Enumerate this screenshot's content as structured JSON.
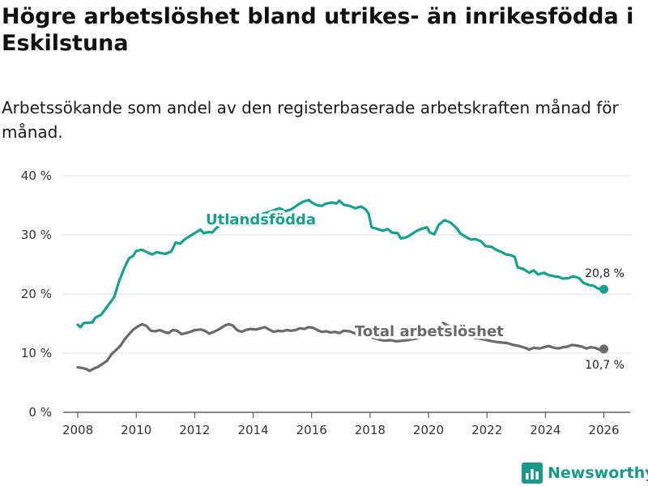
{
  "colors": {
    "foreign_born": "#17a08f",
    "total": "#6a6a6a",
    "grid": "#dcdcdc",
    "brand": "#17988a"
  },
  "icons": {
    "brand_logo": "newsworthy-bar-chart-icon"
  },
  "brand": {
    "name": "Newsworthy"
  },
  "chart_data": {
    "type": "line",
    "title": "Högre arbetslöshet bland utrikes- än inrikesfödda i Eskilstuna",
    "subtitle": "Arbetssökande som andel av den registerbaserade arbetskraften månad för månad.",
    "xlabel": "",
    "ylabel": "",
    "xlim": [
      2007.5,
      2026.9
    ],
    "ylim": [
      0,
      40
    ],
    "x_ticks": [
      2008,
      2010,
      2012,
      2014,
      2016,
      2018,
      2020,
      2022,
      2024,
      2026
    ],
    "x_tick_labels": [
      "2008",
      "2010",
      "2012",
      "2014",
      "2016",
      "2018",
      "2020",
      "2022",
      "2024",
      "2026"
    ],
    "y_ticks": [
      0,
      10,
      20,
      30,
      40
    ],
    "y_tick_labels": [
      "0 %",
      "10 %",
      "20 %",
      "30 %",
      "40 %"
    ],
    "series": [
      {
        "name": "Utlandsfödda",
        "label": "Utlandsfödda",
        "end_label": "20,8 %",
        "points": [
          [
            2008.0,
            14.8
          ],
          [
            2008.1,
            14.4
          ],
          [
            2008.2,
            15.1
          ],
          [
            2008.5,
            15.2
          ],
          [
            2008.6,
            16.0
          ],
          [
            2008.8,
            16.5
          ],
          [
            2008.95,
            17.5
          ],
          [
            2009.1,
            18.5
          ],
          [
            2009.25,
            19.5
          ],
          [
            2009.4,
            22.0
          ],
          [
            2009.6,
            24.5
          ],
          [
            2009.75,
            26.0
          ],
          [
            2009.9,
            26.5
          ],
          [
            2010.0,
            27.3
          ],
          [
            2010.2,
            27.5
          ],
          [
            2010.4,
            27.0
          ],
          [
            2010.55,
            26.7
          ],
          [
            2010.7,
            27.1
          ],
          [
            2010.85,
            26.9
          ],
          [
            2011.0,
            26.8
          ],
          [
            2011.2,
            27.2
          ],
          [
            2011.35,
            28.7
          ],
          [
            2011.5,
            28.5
          ],
          [
            2011.65,
            29.2
          ],
          [
            2011.8,
            29.7
          ],
          [
            2012.0,
            30.3
          ],
          [
            2012.2,
            30.9
          ],
          [
            2012.3,
            30.3
          ],
          [
            2012.5,
            30.5
          ],
          [
            2012.6,
            30.4
          ],
          [
            2012.75,
            31.2
          ],
          [
            2013.0,
            32.0
          ],
          [
            2013.5,
            32.8
          ],
          [
            2014.0,
            33.2
          ],
          [
            2014.5,
            33.8
          ],
          [
            2014.9,
            34.5
          ],
          [
            2015.1,
            34.0
          ],
          [
            2015.3,
            34.3
          ],
          [
            2015.5,
            35.0
          ],
          [
            2015.7,
            35.6
          ],
          [
            2015.9,
            35.9
          ],
          [
            2016.0,
            35.5
          ],
          [
            2016.2,
            35.0
          ],
          [
            2016.35,
            34.9
          ],
          [
            2016.5,
            35.3
          ],
          [
            2016.7,
            35.5
          ],
          [
            2016.85,
            35.3
          ],
          [
            2016.95,
            35.8
          ],
          [
            2017.1,
            35.1
          ],
          [
            2017.3,
            34.9
          ],
          [
            2017.5,
            34.5
          ],
          [
            2017.7,
            34.8
          ],
          [
            2017.85,
            34.3
          ],
          [
            2017.95,
            33.6
          ],
          [
            2018.05,
            31.3
          ],
          [
            2018.25,
            31.0
          ],
          [
            2018.45,
            30.7
          ],
          [
            2018.6,
            31.0
          ],
          [
            2018.75,
            30.4
          ],
          [
            2018.95,
            30.3
          ],
          [
            2019.05,
            29.4
          ],
          [
            2019.25,
            29.6
          ],
          [
            2019.45,
            30.2
          ],
          [
            2019.6,
            30.7
          ],
          [
            2019.75,
            31.0
          ],
          [
            2019.95,
            31.3
          ],
          [
            2020.05,
            30.4
          ],
          [
            2020.2,
            30.1
          ],
          [
            2020.35,
            31.7
          ],
          [
            2020.55,
            32.5
          ],
          [
            2020.75,
            32.1
          ],
          [
            2020.95,
            31.2
          ],
          [
            2021.1,
            30.2
          ],
          [
            2021.3,
            29.6
          ],
          [
            2021.45,
            29.2
          ],
          [
            2021.6,
            29.3
          ],
          [
            2021.8,
            28.9
          ],
          [
            2021.95,
            28.1
          ],
          [
            2022.15,
            28.0
          ],
          [
            2022.35,
            27.4
          ],
          [
            2022.5,
            27.1
          ],
          [
            2022.65,
            26.7
          ],
          [
            2022.8,
            26.6
          ],
          [
            2022.95,
            26.3
          ],
          [
            2023.05,
            24.5
          ],
          [
            2023.25,
            24.2
          ],
          [
            2023.45,
            23.6
          ],
          [
            2023.6,
            24.0
          ],
          [
            2023.75,
            23.3
          ],
          [
            2023.95,
            23.6
          ],
          [
            2024.1,
            23.2
          ],
          [
            2024.3,
            23.0
          ],
          [
            2024.45,
            22.9
          ],
          [
            2024.6,
            22.6
          ],
          [
            2024.8,
            22.7
          ],
          [
            2024.95,
            23.0
          ],
          [
            2025.15,
            22.7
          ],
          [
            2025.3,
            21.9
          ],
          [
            2025.5,
            21.5
          ],
          [
            2025.65,
            21.4
          ],
          [
            2025.8,
            20.9
          ],
          [
            2026.0,
            20.8
          ]
        ]
      },
      {
        "name": "Total arbetslöshet",
        "label": "Total arbetslöshet",
        "end_label": "10,7 %",
        "points": [
          [
            2008.0,
            7.6
          ],
          [
            2008.15,
            7.5
          ],
          [
            2008.3,
            7.3
          ],
          [
            2008.4,
            7.0
          ],
          [
            2008.55,
            7.4
          ],
          [
            2008.7,
            7.7
          ],
          [
            2008.85,
            8.2
          ],
          [
            2009.0,
            8.7
          ],
          [
            2009.15,
            9.8
          ],
          [
            2009.3,
            10.5
          ],
          [
            2009.45,
            11.2
          ],
          [
            2009.6,
            12.3
          ],
          [
            2009.75,
            13.2
          ],
          [
            2009.9,
            14.0
          ],
          [
            2010.05,
            14.5
          ],
          [
            2010.2,
            14.9
          ],
          [
            2010.35,
            14.6
          ],
          [
            2010.5,
            13.8
          ],
          [
            2010.65,
            13.7
          ],
          [
            2010.8,
            13.9
          ],
          [
            2010.95,
            13.6
          ],
          [
            2011.1,
            13.4
          ],
          [
            2011.25,
            13.9
          ],
          [
            2011.4,
            13.8
          ],
          [
            2011.55,
            13.2
          ],
          [
            2011.7,
            13.4
          ],
          [
            2011.85,
            13.6
          ],
          [
            2012.0,
            13.9
          ],
          [
            2012.2,
            14.0
          ],
          [
            2012.35,
            13.8
          ],
          [
            2012.5,
            13.3
          ],
          [
            2012.7,
            13.7
          ],
          [
            2012.85,
            14.1
          ],
          [
            2013.0,
            14.6
          ],
          [
            2013.15,
            14.9
          ],
          [
            2013.3,
            14.7
          ],
          [
            2013.45,
            13.9
          ],
          [
            2013.6,
            13.6
          ],
          [
            2013.75,
            13.9
          ],
          [
            2013.9,
            14.1
          ],
          [
            2014.1,
            14.0
          ],
          [
            2014.25,
            14.2
          ],
          [
            2014.4,
            14.4
          ],
          [
            2014.55,
            14.0
          ],
          [
            2014.7,
            13.6
          ],
          [
            2014.85,
            13.8
          ],
          [
            2015.0,
            13.7
          ],
          [
            2015.15,
            13.9
          ],
          [
            2015.3,
            13.8
          ],
          [
            2015.45,
            13.9
          ],
          [
            2015.6,
            14.2
          ],
          [
            2015.75,
            14.1
          ],
          [
            2015.9,
            14.4
          ],
          [
            2016.05,
            14.3
          ],
          [
            2016.2,
            13.9
          ],
          [
            2016.35,
            13.6
          ],
          [
            2016.5,
            13.7
          ],
          [
            2016.65,
            13.5
          ],
          [
            2016.8,
            13.6
          ],
          [
            2016.95,
            13.4
          ],
          [
            2017.1,
            13.8
          ],
          [
            2017.3,
            13.7
          ],
          [
            2017.5,
            13.3
          ],
          [
            2017.7,
            13.1
          ],
          [
            2017.9,
            12.8
          ],
          [
            2018.1,
            12.6
          ],
          [
            2018.3,
            12.3
          ],
          [
            2018.5,
            12.1
          ],
          [
            2018.7,
            12.2
          ],
          [
            2018.9,
            12.0
          ],
          [
            2019.1,
            12.1
          ],
          [
            2019.3,
            12.2
          ],
          [
            2019.5,
            12.4
          ],
          [
            2019.7,
            12.6
          ],
          [
            2019.9,
            12.8
          ],
          [
            2020.1,
            13.5
          ],
          [
            2020.3,
            14.2
          ],
          [
            2020.5,
            15.1
          ],
          [
            2020.7,
            14.6
          ],
          [
            2020.9,
            13.9
          ],
          [
            2021.1,
            13.3
          ],
          [
            2021.3,
            13.0
          ],
          [
            2021.5,
            12.6
          ],
          [
            2021.7,
            12.5
          ],
          [
            2021.9,
            12.3
          ],
          [
            2022.1,
            12.1
          ],
          [
            2022.3,
            11.9
          ],
          [
            2022.5,
            11.8
          ],
          [
            2022.7,
            11.7
          ],
          [
            2022.9,
            11.4
          ],
          [
            2023.1,
            11.2
          ],
          [
            2023.3,
            10.9
          ],
          [
            2023.45,
            10.6
          ],
          [
            2023.6,
            10.9
          ],
          [
            2023.8,
            10.8
          ],
          [
            2023.95,
            11.0
          ],
          [
            2024.1,
            11.2
          ],
          [
            2024.3,
            10.9
          ],
          [
            2024.45,
            10.8
          ],
          [
            2024.6,
            11.0
          ],
          [
            2024.75,
            11.1
          ],
          [
            2024.9,
            11.4
          ],
          [
            2025.05,
            11.3
          ],
          [
            2025.25,
            11.1
          ],
          [
            2025.4,
            10.8
          ],
          [
            2025.55,
            11.0
          ],
          [
            2025.7,
            10.9
          ],
          [
            2025.85,
            10.6
          ],
          [
            2026.0,
            10.7
          ]
        ]
      }
    ]
  }
}
